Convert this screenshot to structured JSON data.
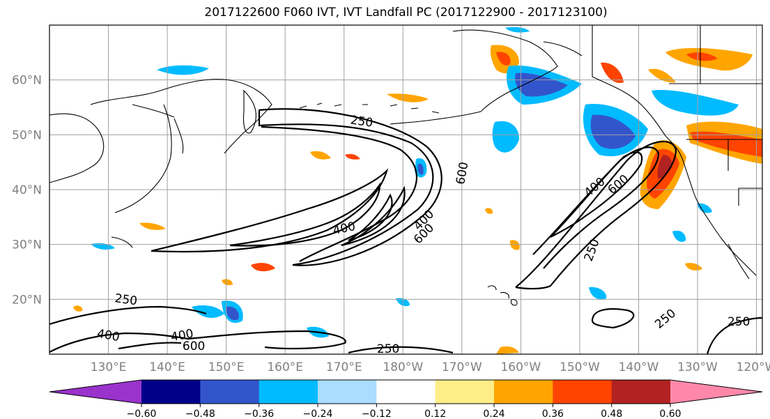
{
  "chart_data": {
    "type": "map",
    "title": "2017122600 F060 IVT, IVT Landfall PC (2017122900 - 2017123100)",
    "lat_ticks": [
      "20°N",
      "30°N",
      "40°N",
      "50°N",
      "60°N"
    ],
    "lon_ticks": [
      "130°E",
      "140°E",
      "150°E",
      "160°E",
      "170°E",
      "180°W",
      "170°W",
      "160°W",
      "150°W",
      "140°W",
      "130°W",
      "120°W"
    ],
    "colorbar": {
      "ticks": [
        "−0.60",
        "−0.48",
        "−0.36",
        "−0.24",
        "−0.12",
        "0.12",
        "0.24",
        "0.36",
        "0.48",
        "0.60"
      ],
      "colors": [
        "#9933cc",
        "#000088",
        "#3355cc",
        "#00bbff",
        "#aaddff",
        "#ffffff",
        "#ffee88",
        "#ffa500",
        "#ff4400",
        "#b22222",
        "#ff88aa"
      ],
      "extend": "both"
    },
    "contour_levels": [
      250,
      400,
      600
    ],
    "contour_labels": [
      {
        "text": "250",
        "lon": 173,
        "lat": 52.5,
        "rot": 8
      },
      {
        "text": "400",
        "lon": 170,
        "lat": 33,
        "rot": -12
      },
      {
        "text": "600",
        "lon": -170,
        "lat": 43,
        "rot": -80
      },
      {
        "text": "600",
        "lon": -176.5,
        "lat": 32,
        "rot": -45
      },
      {
        "text": "400",
        "lon": -176.5,
        "lat": 34.5,
        "rot": -45
      },
      {
        "text": "400",
        "lon": -147.5,
        "lat": 40.5,
        "rot": -40
      },
      {
        "text": "600",
        "lon": -143.5,
        "lat": 41,
        "rot": -40
      },
      {
        "text": "250",
        "lon": -148,
        "lat": 29,
        "rot": -70
      },
      {
        "text": "250",
        "lon": 133,
        "lat": 20,
        "rot": 8
      },
      {
        "text": "400",
        "lon": 130,
        "lat": 13.5,
        "rot": 10
      },
      {
        "text": "400",
        "lon": 142.5,
        "lat": 13.5,
        "rot": -10
      },
      {
        "text": "600",
        "lon": 144.5,
        "lat": 11.5,
        "rot": 0
      },
      {
        "text": "250",
        "lon": 177.5,
        "lat": 11,
        "rot": 0
      },
      {
        "text": "250",
        "lon": -135.5,
        "lat": 16.5,
        "rot": -40
      },
      {
        "text": "250",
        "lon": -123,
        "lat": 16,
        "rot": 0
      }
    ]
  }
}
